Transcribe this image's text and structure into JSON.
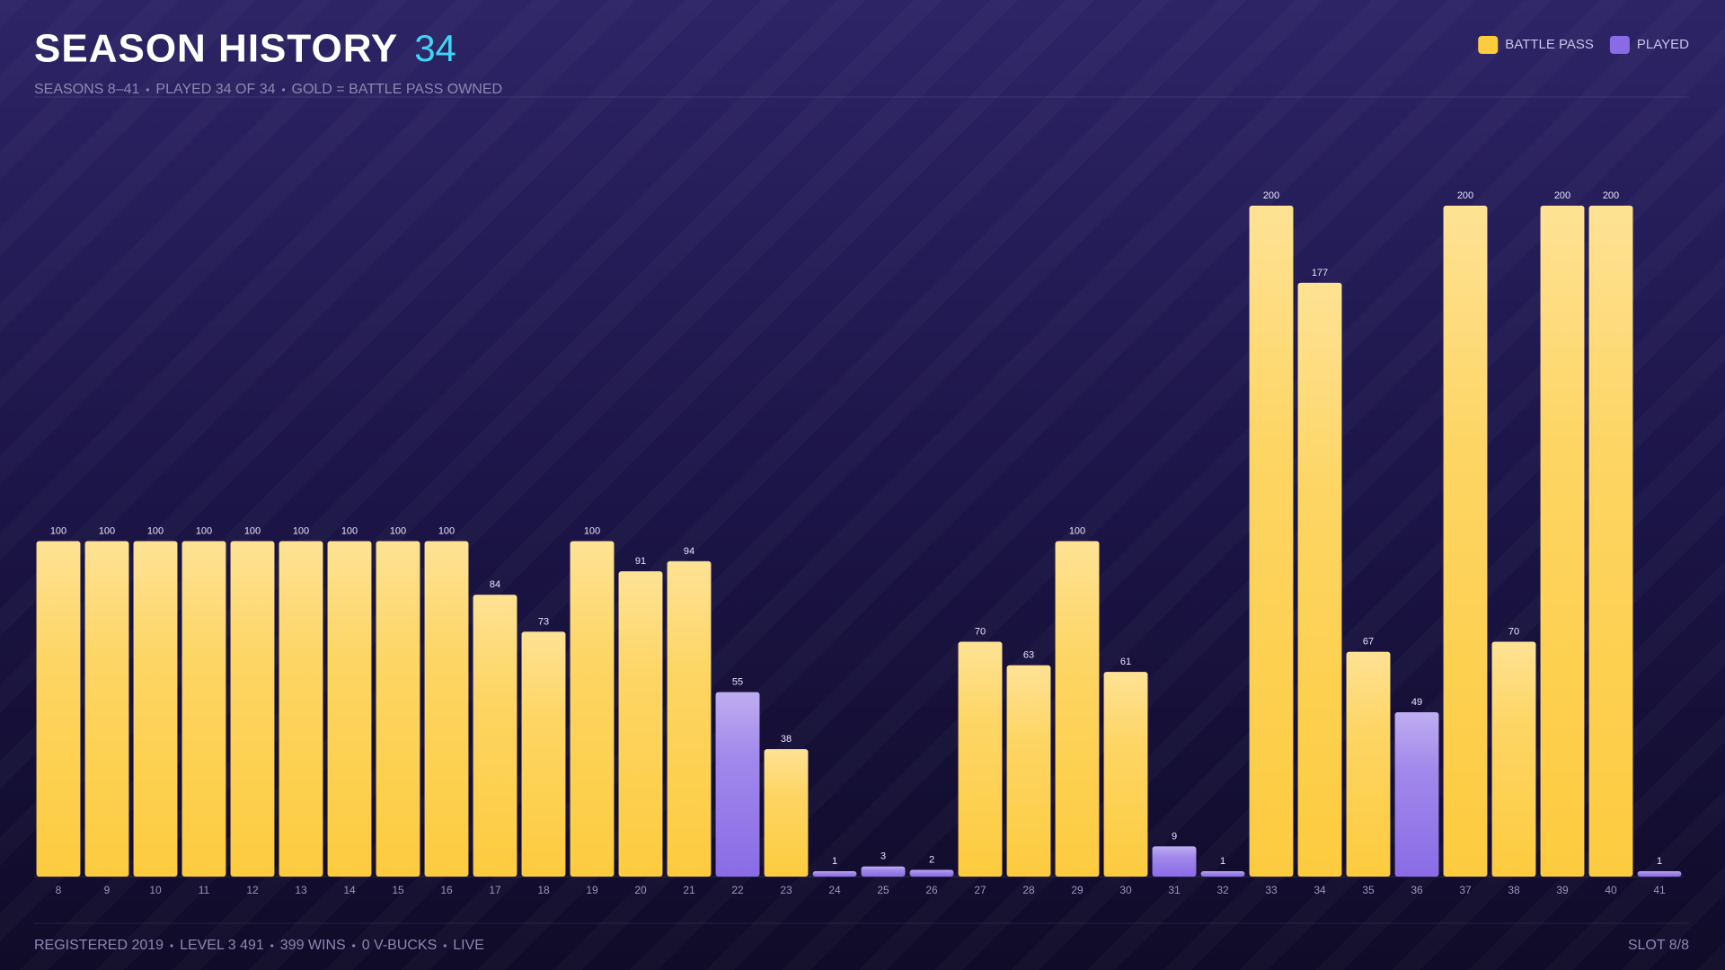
{
  "header": {
    "title": "SEASON HISTORY",
    "count": "34",
    "subtitle": [
      "SEASONS 8–41",
      "PLAYED 34 OF 34",
      "GOLD = BATTLE PASS OWNED"
    ]
  },
  "footer": {
    "items": [
      "REGISTERED 2019",
      "LEVEL 3 491",
      "399 WINS",
      "0 V-BUCKS",
      "LIVE"
    ],
    "slot": "SLOT 8/8"
  },
  "chart_data": {
    "type": "bar",
    "legend": "top-right",
    "ylim": [
      0,
      200
    ],
    "categories": [
      "8",
      "9",
      "10",
      "11",
      "12",
      "13",
      "14",
      "15",
      "16",
      "17",
      "18",
      "19",
      "20",
      "21",
      "22",
      "23",
      "24",
      "25",
      "26",
      "27",
      "28",
      "29",
      "30",
      "31",
      "32",
      "33",
      "34",
      "35",
      "36",
      "37",
      "38",
      "39",
      "40",
      "41"
    ],
    "series": [
      {
        "name": "BATTLE PASS",
        "color": "#fdcb3e",
        "values": [
          100,
          100,
          100,
          100,
          100,
          100,
          100,
          100,
          100,
          84,
          73,
          100,
          91,
          94,
          null,
          38,
          null,
          null,
          null,
          70,
          63,
          100,
          61,
          null,
          null,
          200,
          177,
          67,
          null,
          200,
          70,
          200,
          200,
          null
        ]
      },
      {
        "name": "PLAYED",
        "color": "#8a6be6",
        "values": [
          null,
          null,
          null,
          null,
          null,
          null,
          null,
          null,
          null,
          null,
          null,
          null,
          null,
          null,
          55,
          null,
          1,
          3,
          2,
          null,
          null,
          null,
          null,
          9,
          1,
          null,
          null,
          null,
          49,
          null,
          null,
          null,
          null,
          1
        ]
      }
    ]
  }
}
